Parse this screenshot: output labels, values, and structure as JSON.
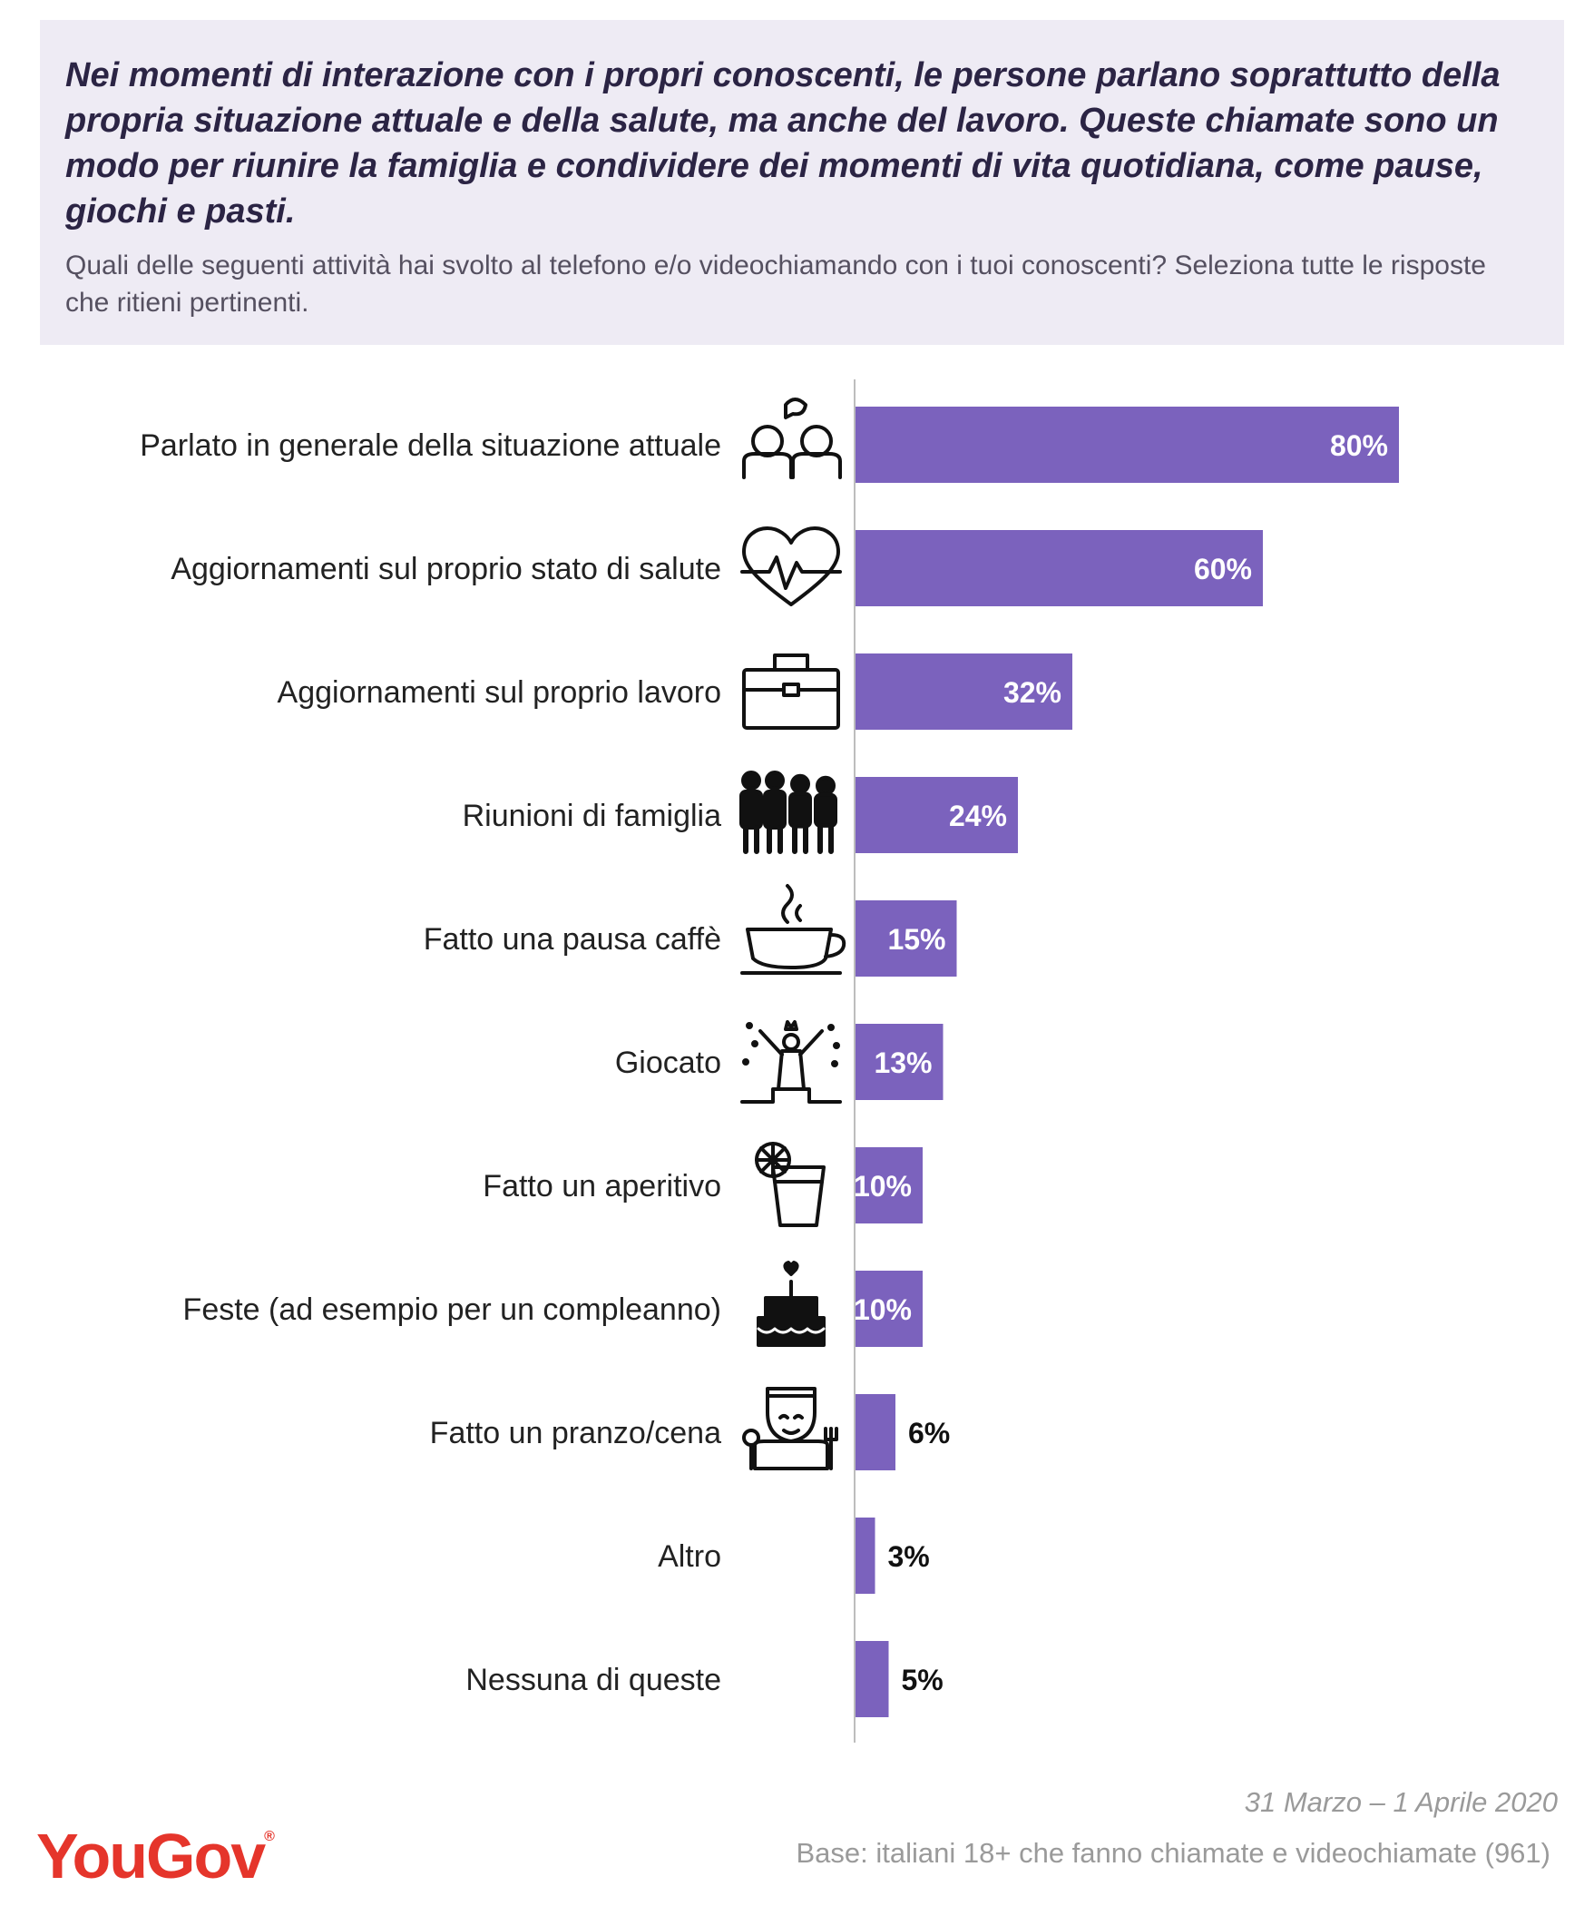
{
  "header": {
    "title": "Nei momenti di interazione con i propri conoscenti, le persone parlano soprattutto della propria situazione attuale e della salute, ma anche del lavoro. Queste chiamate sono un modo per riunire la famiglia e condividere dei momenti di vita quotidiana, come pause, giochi e pasti.",
    "subtitle": "Quali delle seguenti attività hai svolto al telefono e/o videochiamando con i tuoi conoscenti? Seleziona tutte le risposte che ritieni pertinenti."
  },
  "colors": {
    "bar": "#7b62bd",
    "label_inside": "#ffffff",
    "label_outside": "#111111",
    "brand": "#e5352b"
  },
  "chart_data": {
    "type": "bar",
    "orientation": "horizontal",
    "categories": [
      "Parlato in generale della situazione attuale",
      "Aggiornamenti sul proprio stato di salute",
      "Aggiornamenti sul proprio lavoro",
      "Riunioni di famiglia",
      "Fatto una pausa caffè",
      "Giocato",
      "Fatto un aperitivo",
      "Feste (ad esempio per un compleanno)",
      "Fatto un pranzo/cena",
      "Altro",
      "Nessuna di queste"
    ],
    "values": [
      80,
      60,
      32,
      24,
      15,
      13,
      10,
      10,
      6,
      3,
      5
    ],
    "value_labels": [
      "80%",
      "60%",
      "32%",
      "24%",
      "15%",
      "13%",
      "10%",
      "10%",
      "6%",
      "3%",
      "5%"
    ],
    "icons": [
      "people-talking-icon",
      "heart-pulse-icon",
      "briefcase-icon",
      "family-icon",
      "coffee-cup-icon",
      "celebration-icon",
      "drink-glass-icon",
      "birthday-cake-icon",
      "dining-person-icon",
      "",
      ""
    ],
    "xlim": [
      0,
      100
    ],
    "grid": false,
    "legend": "none"
  },
  "footer": {
    "date": "31 Marzo – 1 Aprile 2020",
    "base": "Base: italiani 18+ che fanno chiamate e videochiamate (961)",
    "logo": "YouGov",
    "logo_mark": "®"
  }
}
